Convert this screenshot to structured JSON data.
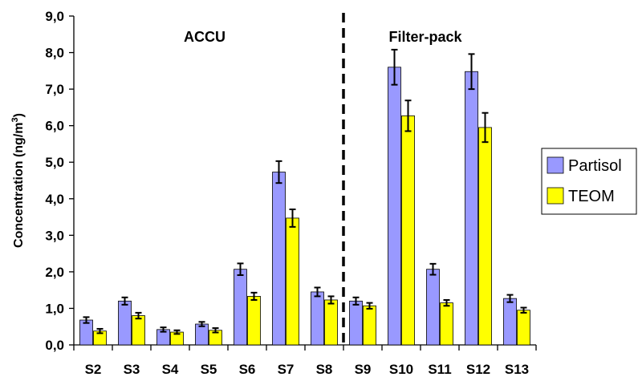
{
  "chart_data": {
    "type": "bar",
    "ylabel": "Concentration (ng/m",
    "ylabel_sup": "3",
    "ylabel_end": ")",
    "ylim": [
      0,
      9
    ],
    "yticks": [
      "0,0",
      "1,0",
      "2,0",
      "3,0",
      "4,0",
      "5,0",
      "6,0",
      "7,0",
      "8,0",
      "9,0"
    ],
    "categories": [
      "S2",
      "S3",
      "S4",
      "S5",
      "S6",
      "S7",
      "S8",
      "S9",
      "S10",
      "S11",
      "S12",
      "S13"
    ],
    "series": [
      {
        "name": "Partisol",
        "color": "#9999ff",
        "values": [
          0.68,
          1.2,
          0.42,
          0.57,
          2.07,
          4.73,
          1.45,
          1.2,
          7.6,
          2.07,
          7.48,
          1.27
        ],
        "errors": [
          0.08,
          0.1,
          0.06,
          0.06,
          0.16,
          0.3,
          0.12,
          0.1,
          0.48,
          0.15,
          0.48,
          0.1
        ]
      },
      {
        "name": "TEOM",
        "color": "#ffff00",
        "values": [
          0.38,
          0.8,
          0.35,
          0.4,
          1.33,
          3.47,
          1.23,
          1.07,
          6.27,
          1.15,
          5.95,
          0.95
        ],
        "errors": [
          0.06,
          0.08,
          0.05,
          0.06,
          0.1,
          0.24,
          0.1,
          0.08,
          0.42,
          0.08,
          0.4,
          0.07
        ]
      }
    ],
    "annotations": [
      "ACCU",
      "Filter-pack"
    ],
    "divider_after_category": "S8",
    "legend_position": "right",
    "grid": false
  }
}
